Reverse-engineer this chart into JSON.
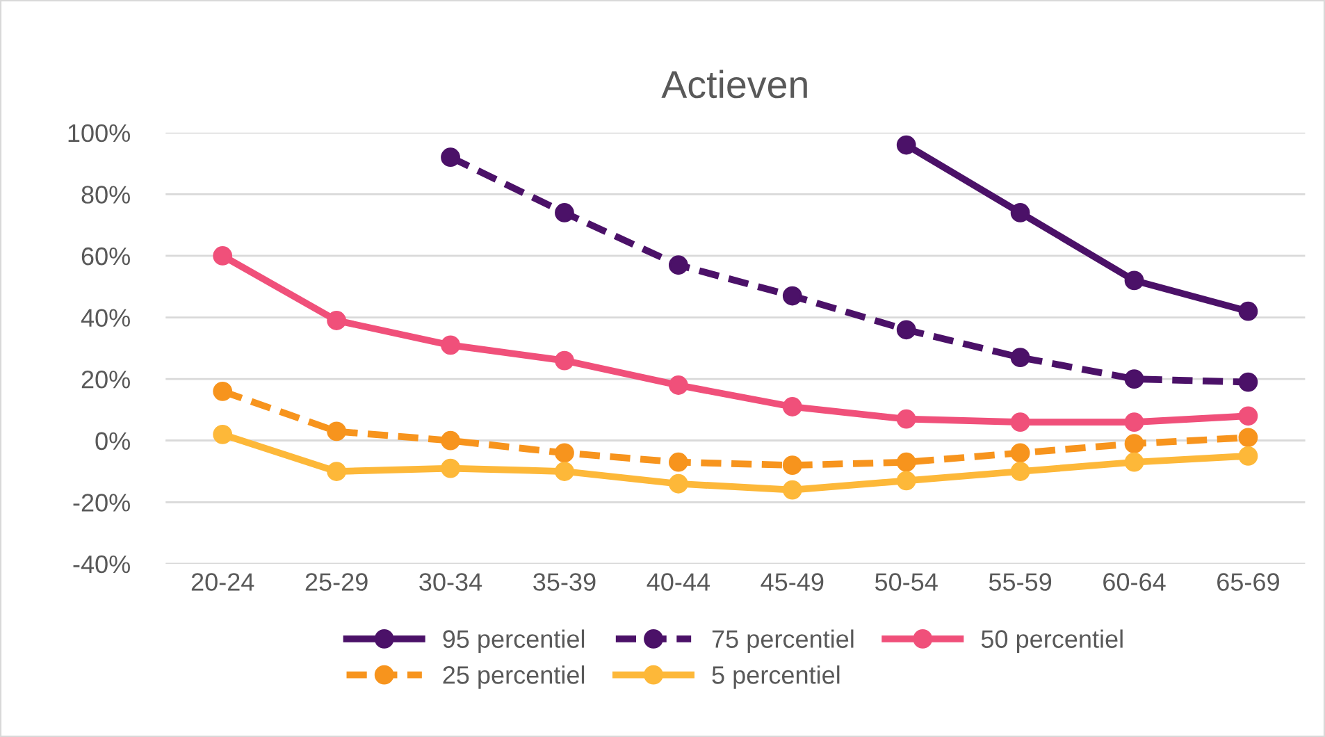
{
  "chart_data": {
    "type": "line",
    "title": "Actieven",
    "categories": [
      "20-24",
      "25-29",
      "30-34",
      "35-39",
      "40-44",
      "45-49",
      "50-54",
      "55-59",
      "60-64",
      "65-69"
    ],
    "series": [
      {
        "name": "95 percentiel",
        "color": "#4b1168",
        "line_style": "solid",
        "values": [
          null,
          null,
          null,
          null,
          null,
          null,
          96,
          74,
          52,
          42
        ]
      },
      {
        "name": "75 percentiel",
        "color": "#4b1168",
        "line_style": "dashed",
        "values": [
          null,
          null,
          92,
          74,
          57,
          47,
          36,
          27,
          20,
          19
        ]
      },
      {
        "name": "50 percentiel",
        "color": "#f0507a",
        "line_style": "solid",
        "values": [
          60,
          39,
          31,
          26,
          18,
          11,
          7,
          6,
          6,
          8
        ]
      },
      {
        "name": "25 percentiel",
        "color": "#f7941d",
        "line_style": "dashed",
        "values": [
          16,
          3,
          0,
          -4,
          -7,
          -8,
          -7,
          -4,
          -1,
          1
        ]
      },
      {
        "name": "5 percentiel",
        "color": "#fdb839",
        "line_style": "solid",
        "values": [
          2,
          -10,
          -9,
          -10,
          -14,
          -16,
          -13,
          -10,
          -7,
          -5
        ]
      }
    ],
    "ylim": [
      -40,
      100
    ],
    "yticks": [
      {
        "value": -40,
        "label": "-40%"
      },
      {
        "value": -20,
        "label": "-20%"
      },
      {
        "value": 0,
        "label": "0%"
      },
      {
        "value": 20,
        "label": "20%"
      },
      {
        "value": 40,
        "label": "40%"
      },
      {
        "value": 60,
        "label": "60%"
      },
      {
        "value": 80,
        "label": "80%"
      },
      {
        "value": 100,
        "label": "100%"
      }
    ],
    "grid": "y",
    "legend": "bottom",
    "marker": "circle"
  }
}
